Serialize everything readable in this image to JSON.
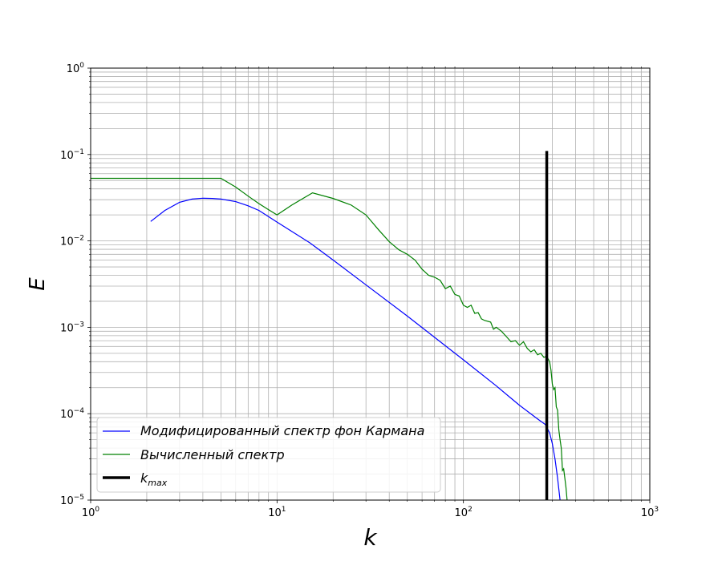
{
  "chart_data": {
    "type": "line",
    "xlabel": "k",
    "ylabel": "E",
    "xscale": "log",
    "yscale": "log",
    "xlim": [
      1,
      1000
    ],
    "ylim": [
      1e-05,
      1
    ],
    "grid": true,
    "grid_minor": true,
    "legend_position": "lower-left",
    "x_ticks": [
      {
        "value": 1,
        "base": "10",
        "exp": "0"
      },
      {
        "value": 10,
        "base": "10",
        "exp": "1"
      },
      {
        "value": 100,
        "base": "10",
        "exp": "2"
      },
      {
        "value": 1000,
        "base": "10",
        "exp": "3"
      }
    ],
    "y_ticks": [
      {
        "value": 1e-05,
        "base": "10",
        "exp": "−5"
      },
      {
        "value": 0.0001,
        "base": "10",
        "exp": "−4"
      },
      {
        "value": 0.001,
        "base": "10",
        "exp": "−3"
      },
      {
        "value": 0.01,
        "base": "10",
        "exp": "−2"
      },
      {
        "value": 0.1,
        "base": "10",
        "exp": "−1"
      },
      {
        "value": 1,
        "base": "10",
        "exp": "0"
      }
    ],
    "series": [
      {
        "name": "Модифицированный спектр фон Кармана",
        "color": "#0000ff",
        "points": [
          [
            2.1,
            0.0168
          ],
          [
            2.5,
            0.0225
          ],
          [
            3.0,
            0.028
          ],
          [
            3.5,
            0.0305
          ],
          [
            4.0,
            0.0312
          ],
          [
            4.5,
            0.031
          ],
          [
            5.0,
            0.0305
          ],
          [
            6.0,
            0.0285
          ],
          [
            7.0,
            0.0255
          ],
          [
            8.0,
            0.0225
          ],
          [
            10.0,
            0.0165
          ],
          [
            15.0,
            0.0095
          ],
          [
            20.0,
            0.006
          ],
          [
            30.0,
            0.0031
          ],
          [
            50.0,
            0.00135
          ],
          [
            100.0,
            0.00042
          ],
          [
            150.0,
            0.00021
          ],
          [
            200.0,
            0.000125
          ],
          [
            250.0,
            8.7e-05
          ],
          [
            275.0,
            7.5e-05
          ],
          [
            290.0,
            6e-05
          ],
          [
            300.0,
            4.5e-05
          ],
          [
            310.0,
            3e-05
          ],
          [
            320.0,
            1.8e-05
          ],
          [
            330.0,
            1e-05
          ]
        ]
      },
      {
        "name": "Вычисленный спектр",
        "color": "#008000",
        "points": [
          [
            1.0,
            0.053
          ],
          [
            2.0,
            0.053
          ],
          [
            3.0,
            0.053
          ],
          [
            4.0,
            0.053
          ],
          [
            5.0,
            0.053
          ],
          [
            6.0,
            0.042
          ],
          [
            7.0,
            0.033
          ],
          [
            8.0,
            0.027
          ],
          [
            9.0,
            0.023
          ],
          [
            10.0,
            0.02
          ],
          [
            12.0,
            0.026
          ],
          [
            15.5,
            0.036
          ],
          [
            20.0,
            0.031
          ],
          [
            25.0,
            0.026
          ],
          [
            30.0,
            0.02
          ],
          [
            35.0,
            0.0135
          ],
          [
            40.0,
            0.0098
          ],
          [
            45.0,
            0.0079
          ],
          [
            50.0,
            0.007
          ],
          [
            55.0,
            0.006
          ],
          [
            60.0,
            0.0047
          ],
          [
            65.0,
            0.004
          ],
          [
            70.0,
            0.0038
          ],
          [
            75.0,
            0.0035
          ],
          [
            80.0,
            0.0028
          ],
          [
            85.0,
            0.003
          ],
          [
            90.0,
            0.0024
          ],
          [
            95.0,
            0.0023
          ],
          [
            100.0,
            0.0018
          ],
          [
            105.0,
            0.0017
          ],
          [
            110.0,
            0.0018
          ],
          [
            115.0,
            0.00145
          ],
          [
            120.0,
            0.00148
          ],
          [
            125.0,
            0.00125
          ],
          [
            130.0,
            0.0012
          ],
          [
            140.0,
            0.00115
          ],
          [
            145.0,
            0.00095
          ],
          [
            150.0,
            0.001
          ],
          [
            160.0,
            0.0009
          ],
          [
            170.0,
            0.00078
          ],
          [
            180.0,
            0.00068
          ],
          [
            190.0,
            0.0007
          ],
          [
            200.0,
            0.00062
          ],
          [
            210.0,
            0.00068
          ],
          [
            220.0,
            0.00057
          ],
          [
            230.0,
            0.00052
          ],
          [
            240.0,
            0.00055
          ],
          [
            250.0,
            0.00048
          ],
          [
            260.0,
            0.0005
          ],
          [
            270.0,
            0.00045
          ],
          [
            280.0,
            0.00046
          ],
          [
            290.0,
            0.0004
          ],
          [
            295.0,
            0.00032
          ],
          [
            300.0,
            0.00022
          ],
          [
            305.0,
            0.00019
          ],
          [
            310.0,
            0.0002
          ],
          [
            315.0,
            0.00012
          ],
          [
            320.0,
            0.00011
          ],
          [
            325.0,
            6.5e-05
          ],
          [
            330.0,
            5e-05
          ],
          [
            335.0,
            4e-05
          ],
          [
            340.0,
            2.2e-05
          ],
          [
            345.0,
            2.3e-05
          ],
          [
            350.0,
            1.8e-05
          ],
          [
            355.0,
            1.4e-05
          ],
          [
            360.0,
            1e-05
          ]
        ]
      }
    ],
    "vline": {
      "name": "k_max",
      "label_base": "k",
      "label_sub": "max",
      "x": 280,
      "y_top": 0.11,
      "color": "#000000"
    }
  }
}
